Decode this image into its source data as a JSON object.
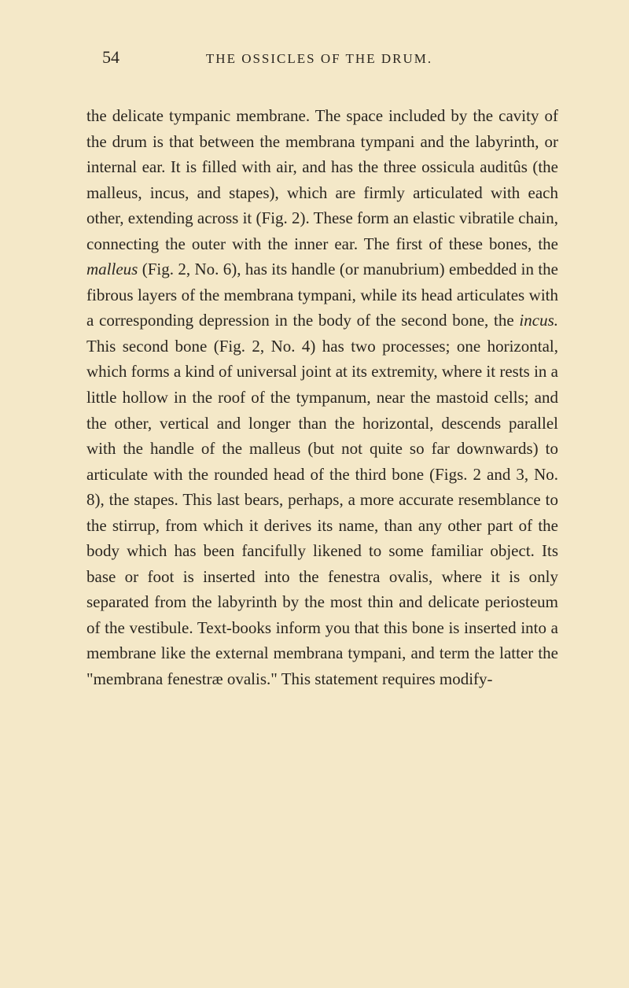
{
  "page": {
    "number": "54",
    "running_title": "THE OSSICLES OF THE DRUM.",
    "background_color": "#f4e8c8",
    "text_color": "#2a2620",
    "body_fontsize": 21,
    "header_fontsize": 17,
    "pagenum_fontsize": 22,
    "line_height": 1.55
  },
  "paragraphs": [
    {
      "segments": [
        {
          "text": "the delicate tympanic membrane. The space included by the cavity of the drum is that between the membrana tympani and the labyrinth, or internal ear. It is filled with air, and has the three ossicula auditûs (the malleus, incus, and stapes), which are firmly articulated with each other, extending across it (Fig. 2). These form an elastic vibratile chain, connecting the outer with the inner ear. The first of these bones, the ",
          "italic": false
        },
        {
          "text": "malleus",
          "italic": true
        },
        {
          "text": " (Fig. 2, No. 6), has its handle (or manubrium) embedded in the fibrous layers of the membrana tympani, while its head articulates with a corresponding depression in the body of the second bone, the ",
          "italic": false
        },
        {
          "text": "incus.",
          "italic": true
        },
        {
          "text": " This second bone (Fig. 2, No. 4) has two processes; one horizontal, which forms a kind of universal joint at its extremity, where it rests in a little hollow in the roof of the tympanum, near the mastoid cells; and the other, vertical and longer than the horizontal, descends parallel with the handle of the malleus (but not quite so far downwards) to articulate with the rounded head of the third bone (Figs. 2 and 3, No. 8), the stapes. This last bears, perhaps, a more accurate resemblance to the stirrup, from which it derives its name, than any other part of the body which has been fancifully likened to some familiar object. Its base or foot is inserted into the fenestra ovalis, where it is only separated from the labyrinth by the most thin and delicate periosteum of the vestibule. Text-books inform you that this bone is inserted into a membrane like the external membrana tympani, and term the latter the \"membrana fenestræ ovalis.\" This statement requires modify-",
          "italic": false
        }
      ]
    }
  ]
}
